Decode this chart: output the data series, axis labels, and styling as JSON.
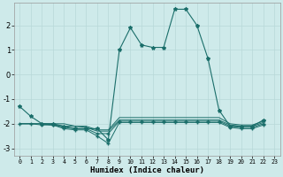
{
  "xlabel": "Humidex (Indice chaleur)",
  "background_color": "#ceeaea",
  "grid_color": "#b8d8d8",
  "line_color": "#1a6e6a",
  "xlim": [
    -0.5,
    23.5
  ],
  "ylim": [
    -3.3,
    2.9
  ],
  "yticks": [
    -3,
    -2,
    -1,
    0,
    1,
    2
  ],
  "xticks": [
    0,
    1,
    2,
    3,
    4,
    5,
    6,
    7,
    8,
    9,
    10,
    11,
    12,
    13,
    14,
    15,
    16,
    17,
    18,
    19,
    20,
    21,
    22,
    23
  ],
  "main_x": [
    0,
    1,
    2,
    3,
    4,
    5,
    6,
    7,
    8,
    9,
    10,
    11,
    12,
    13,
    14,
    15,
    16,
    17,
    18,
    19,
    20,
    21,
    22
  ],
  "main_y": [
    -1.3,
    -1.7,
    -2.0,
    -2.0,
    -2.1,
    -2.2,
    -2.2,
    -2.2,
    -2.65,
    1.0,
    1.9,
    1.2,
    1.1,
    1.1,
    2.65,
    2.65,
    2.0,
    0.65,
    -1.45,
    -2.1,
    -2.1,
    -2.1,
    -1.85
  ],
  "line2_x": [
    0,
    1,
    2,
    3,
    4,
    5,
    6,
    7,
    8,
    9,
    10,
    11,
    12,
    13,
    14,
    15,
    16,
    17,
    18,
    19,
    20,
    21,
    22
  ],
  "line2_y": [
    -2.0,
    -2.0,
    -2.0,
    -2.0,
    -2.0,
    -2.1,
    -2.1,
    -2.25,
    -2.25,
    -1.75,
    -1.75,
    -1.75,
    -1.75,
    -1.75,
    -1.75,
    -1.75,
    -1.75,
    -1.75,
    -1.75,
    -2.0,
    -2.05,
    -2.05,
    -1.9
  ],
  "line3_x": [
    0,
    1,
    2,
    3,
    4,
    5,
    6,
    7,
    8,
    9,
    10,
    11,
    12,
    13,
    14,
    15,
    16,
    17,
    18,
    19,
    20,
    21,
    22
  ],
  "line3_y": [
    -2.0,
    -2.0,
    -2.0,
    -2.05,
    -2.1,
    -2.1,
    -2.15,
    -2.3,
    -2.3,
    -1.85,
    -1.85,
    -1.85,
    -1.85,
    -1.85,
    -1.85,
    -1.85,
    -1.85,
    -1.85,
    -1.85,
    -2.05,
    -2.1,
    -2.1,
    -1.95
  ],
  "line4_x": [
    0,
    1,
    2,
    3,
    4,
    5,
    6,
    7,
    8,
    9,
    10,
    11,
    12,
    13,
    14,
    15,
    16,
    17,
    18,
    19,
    20,
    21,
    22
  ],
  "line4_y": [
    -2.0,
    -2.0,
    -2.05,
    -2.05,
    -2.15,
    -2.2,
    -2.2,
    -2.4,
    -2.4,
    -1.9,
    -1.9,
    -1.9,
    -1.9,
    -1.9,
    -1.9,
    -1.9,
    -1.9,
    -1.9,
    -1.9,
    -2.1,
    -2.15,
    -2.15,
    -2.0
  ],
  "line5_x": [
    2,
    3,
    4,
    5,
    6,
    7,
    8,
    9,
    10,
    11,
    12,
    13,
    14,
    15,
    16,
    17,
    18,
    19,
    20,
    21,
    22
  ],
  "line5_y": [
    -2.0,
    -2.05,
    -2.2,
    -2.25,
    -2.25,
    -2.5,
    -2.8,
    -1.95,
    -1.95,
    -1.95,
    -1.95,
    -1.95,
    -1.95,
    -1.95,
    -1.95,
    -1.95,
    -1.95,
    -2.15,
    -2.2,
    -2.2,
    -2.05
  ]
}
